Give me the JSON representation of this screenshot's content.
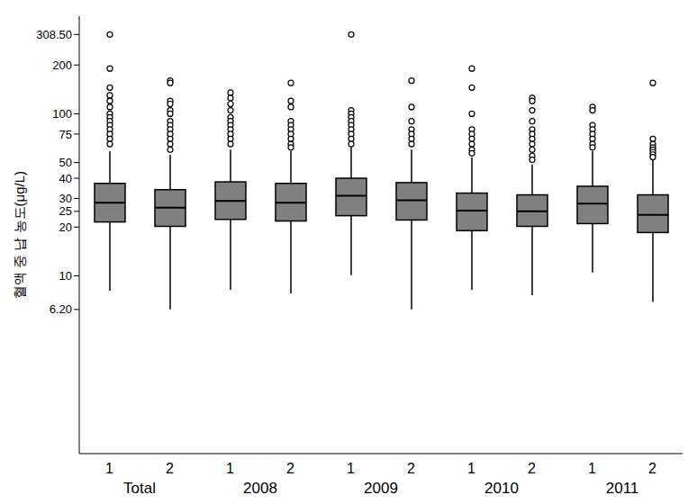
{
  "chart_data": {
    "type": "boxplot",
    "y_label": "혈액 중 납 농도(μg/L)",
    "categories": [
      "1",
      "2",
      "1",
      "2",
      "1",
      "2",
      "1",
      "2",
      "1",
      "2"
    ],
    "groups": [
      "Total",
      "2008",
      "2009",
      "2010",
      "2011"
    ],
    "boxes": [
      {
        "low": 8.1,
        "q1": 21.5,
        "median": 28.3,
        "q3": 37.2,
        "high": 58.8,
        "outliers": [
          308.5,
          190,
          145,
          130,
          120,
          110,
          100,
          95,
          90,
          85,
          80,
          75,
          70,
          65
        ]
      },
      {
        "low": 6.2,
        "q1": 20.2,
        "median": 26.3,
        "q3": 34.0,
        "high": 55.8,
        "outliers": [
          160,
          155,
          120,
          115,
          105,
          100,
          90,
          85,
          80,
          75,
          70,
          65,
          60
        ]
      },
      {
        "low": 8.2,
        "q1": 22.3,
        "median": 29,
        "q3": 38,
        "high": 60,
        "outliers": [
          135,
          125,
          115,
          105,
          95,
          90,
          85,
          80,
          75,
          70,
          65
        ]
      },
      {
        "low": 7.8,
        "q1": 21.8,
        "median": 28.3,
        "q3": 37.2,
        "high": 59,
        "outliers": [
          155,
          120,
          110,
          90,
          85,
          80,
          75,
          70,
          65,
          62
        ]
      },
      {
        "low": 10.1,
        "q1": 23.5,
        "median": 31.2,
        "q3": 40,
        "high": 62,
        "outliers": [
          308.5,
          105,
          100,
          95,
          90,
          85,
          80,
          75,
          70,
          65
        ]
      },
      {
        "low": 6.2,
        "q1": 22.1,
        "median": 29.3,
        "q3": 37.6,
        "high": 60,
        "outliers": [
          160,
          110,
          90,
          80,
          75,
          70,
          65
        ]
      },
      {
        "low": 8.2,
        "q1": 19,
        "median": 25.3,
        "q3": 32.4,
        "high": 53.9,
        "outliers": [
          190,
          145,
          100,
          80,
          75,
          70,
          65,
          60,
          57
        ]
      },
      {
        "low": 7.6,
        "q1": 20.2,
        "median": 25,
        "q3": 31.6,
        "high": 48.7,
        "outliers": [
          125,
          120,
          105,
          90,
          80,
          75,
          70,
          65,
          60,
          55,
          52
        ]
      },
      {
        "low": 10.5,
        "q1": 21,
        "median": 27.9,
        "q3": 35.7,
        "high": 58.8,
        "outliers": [
          110,
          105,
          85,
          80,
          75,
          70,
          65,
          62
        ]
      },
      {
        "low": 6.9,
        "q1": 18.5,
        "median": 23.8,
        "q3": 31.6,
        "high": 51.9,
        "outliers": [
          155,
          70,
          65,
          62,
          60,
          58,
          56,
          54
        ]
      }
    ],
    "color": "#808080",
    "ylim": [
      0.8,
      400
    ],
    "yticks": [
      {
        "value": 6.2,
        "label": "6.20"
      },
      10,
      20,
      25,
      30,
      40,
      50,
      75,
      100,
      200,
      {
        "value": 308.5,
        "label": "308.50"
      }
    ],
    "log": "y",
    "grid": false
  }
}
